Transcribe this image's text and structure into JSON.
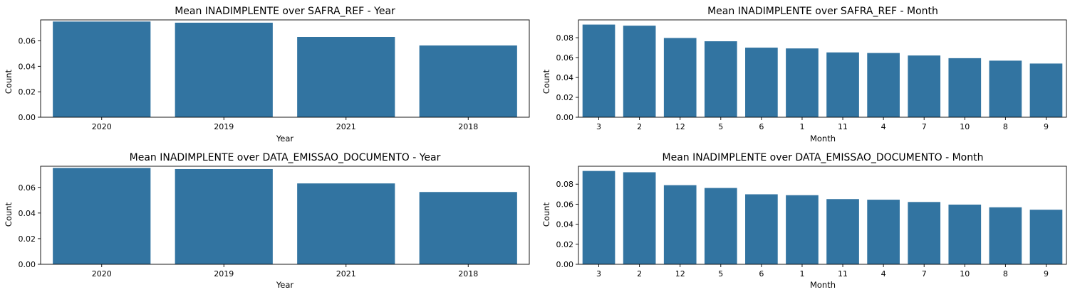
{
  "figure": {
    "bar_color": "#3274a1",
    "panels": [
      {
        "title": "Mean INADIMPLENTE over SAFRA_REF - Year",
        "xlabel": "Year",
        "ylabel": "Count"
      },
      {
        "title": "Mean INADIMPLENTE over SAFRA_REF - Month",
        "xlabel": "Month",
        "ylabel": "Count"
      },
      {
        "title": "Mean INADIMPLENTE over DATA_EMISSAO_DOCUMENTO - Year",
        "xlabel": "Year",
        "ylabel": "Count"
      },
      {
        "title": "Mean INADIMPLENTE over DATA_EMISSAO_DOCUMENTO - Month",
        "xlabel": "Month",
        "ylabel": "Count"
      }
    ]
  },
  "chart_data": [
    {
      "type": "bar",
      "title": "Mean INADIMPLENTE over SAFRA_REF - Year",
      "xlabel": "Year",
      "ylabel": "Count",
      "categories": [
        "2020",
        "2019",
        "2021",
        "2018"
      ],
      "values": [
        0.0752,
        0.0743,
        0.0631,
        0.0564
      ],
      "ylim": [
        0,
        0.0765
      ],
      "yticks": [
        "0.00",
        "0.02",
        "0.04",
        "0.06"
      ],
      "grid": false,
      "color": "#3274a1"
    },
    {
      "type": "bar",
      "title": "Mean INADIMPLENTE over SAFRA_REF - Month",
      "xlabel": "Month",
      "ylabel": "Count",
      "categories": [
        "3",
        "2",
        "12",
        "5",
        "6",
        "1",
        "11",
        "4",
        "7",
        "10",
        "8",
        "9"
      ],
      "values": [
        0.0932,
        0.0921,
        0.0797,
        0.0764,
        0.07,
        0.0692,
        0.0652,
        0.0646,
        0.0621,
        0.0594,
        0.0569,
        0.054
      ],
      "ylim": [
        0,
        0.0979
      ],
      "yticks": [
        "0.00",
        "0.02",
        "0.04",
        "0.06",
        "0.08"
      ],
      "grid": false,
      "color": "#3274a1"
    },
    {
      "type": "bar",
      "title": "Mean INADIMPLENTE over DATA_EMISSAO_DOCUMENTO - Year",
      "xlabel": "Year",
      "ylabel": "Count",
      "categories": [
        "2020",
        "2019",
        "2021",
        "2018"
      ],
      "values": [
        0.0752,
        0.0743,
        0.0631,
        0.0564
      ],
      "ylim": [
        0,
        0.0765
      ],
      "yticks": [
        "0.00",
        "0.02",
        "0.04",
        "0.06"
      ],
      "grid": false,
      "color": "#3274a1"
    },
    {
      "type": "bar",
      "title": "Mean INADIMPLENTE over DATA_EMISSAO_DOCUMENTO - Month",
      "xlabel": "Month",
      "ylabel": "Count",
      "categories": [
        "3",
        "2",
        "12",
        "5",
        "6",
        "1",
        "11",
        "4",
        "7",
        "10",
        "8",
        "9"
      ],
      "values": [
        0.0932,
        0.0919,
        0.079,
        0.0762,
        0.0699,
        0.069,
        0.0651,
        0.0645,
        0.0622,
        0.0596,
        0.0569,
        0.0545
      ],
      "ylim": [
        0,
        0.0979
      ],
      "yticks": [
        "0.00",
        "0.02",
        "0.04",
        "0.06",
        "0.08"
      ],
      "grid": false,
      "color": "#3274a1"
    }
  ]
}
